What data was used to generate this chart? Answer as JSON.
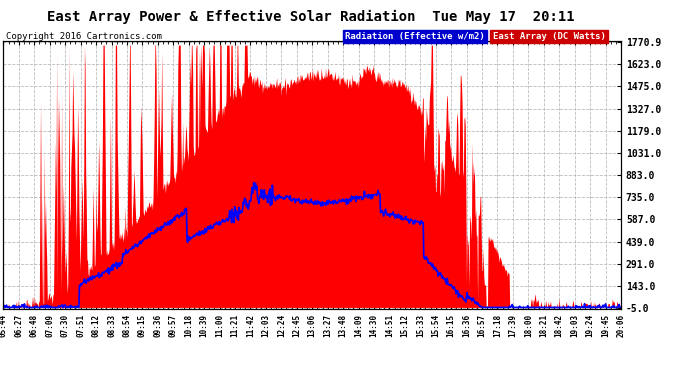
{
  "title": "East Array Power & Effective Solar Radiation  Tue May 17  20:11",
  "copyright": "Copyright 2016 Cartronics.com",
  "legend_blue": "Radiation (Effective w/m2)",
  "legend_red": "East Array (DC Watts)",
  "ymin": -5.0,
  "ymax": 1770.9,
  "yticks": [
    1770.9,
    1623.0,
    1475.0,
    1327.0,
    1179.0,
    1031.0,
    883.0,
    735.0,
    587.0,
    439.0,
    291.0,
    143.0,
    -5.0
  ],
  "background_color": "#ffffff",
  "plot_bg_color": "#ffffff",
  "grid_color": "#bbbbbb",
  "red_fill_color": "#ff0000",
  "blue_line_color": "#0000ff",
  "x_labels": [
    "05:44",
    "06:27",
    "06:48",
    "07:09",
    "07:30",
    "07:51",
    "08:12",
    "08:33",
    "08:54",
    "09:15",
    "09:36",
    "09:57",
    "10:18",
    "10:39",
    "11:00",
    "11:21",
    "11:42",
    "12:03",
    "12:24",
    "12:45",
    "13:06",
    "13:27",
    "13:48",
    "14:09",
    "14:30",
    "14:51",
    "15:12",
    "15:33",
    "15:54",
    "16:15",
    "16:36",
    "16:57",
    "17:18",
    "17:39",
    "18:00",
    "18:21",
    "18:42",
    "19:03",
    "19:24",
    "19:45",
    "20:06"
  ]
}
